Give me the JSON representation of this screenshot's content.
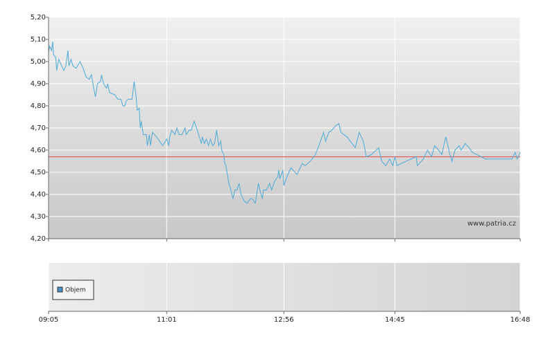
{
  "chart_data": {
    "type": "line",
    "x": [
      "09:05",
      "09:06",
      "09:08",
      "09:09",
      "09:10",
      "09:12",
      "09:13",
      "09:15",
      "09:17",
      "09:20",
      "09:22",
      "09:24",
      "09:25",
      "09:27",
      "09:29",
      "09:32",
      "09:36",
      "09:39",
      "09:42",
      "09:45",
      "09:47",
      "09:49",
      "09:51",
      "09:53",
      "09:56",
      "09:57",
      "09:59",
      "10:02",
      "10:03",
      "10:05",
      "10:10",
      "10:13",
      "10:16",
      "10:18",
      "10:20",
      "10:21",
      "10:23",
      "10:27",
      "10:29",
      "10:31",
      "10:32",
      "10:34",
      "10:35",
      "10:36",
      "10:38",
      "10:39",
      "10:41",
      "10:42",
      "10:44",
      "10:45",
      "10:47",
      "10:51",
      "10:54",
      "10:57",
      "11:01",
      "11:03",
      "11:04",
      "11:06",
      "11:09",
      "11:11",
      "11:13",
      "11:16",
      "11:19",
      "11:20",
      "11:23",
      "11:25",
      "11:28",
      "11:31",
      "11:35",
      "11:36",
      "11:38",
      "11:40",
      "11:42",
      "11:44",
      "11:46",
      "11:48",
      "11:50",
      "11:52",
      "11:54",
      "11:55",
      "11:57",
      "11:58",
      "11:59",
      "12:02",
      "12:04",
      "12:06",
      "12:08",
      "12:10",
      "12:12",
      "12:14",
      "12:17",
      "12:20",
      "12:23",
      "12:25",
      "12:28",
      "12:31",
      "12:33",
      "12:35",
      "12:36",
      "12:39",
      "12:42",
      "12:44",
      "12:47",
      "12:50",
      "12:51",
      "12:52",
      "12:55",
      "12:56",
      "12:59",
      "13:03",
      "13:09",
      "13:14",
      "13:17",
      "13:22",
      "13:27",
      "13:32",
      "13:35",
      "13:37",
      "13:40",
      "13:43",
      "13:47",
      "13:50",
      "13:52",
      "13:58",
      "14:03",
      "14:06",
      "14:10",
      "14:14",
      "14:17",
      "14:22",
      "14:29",
      "14:32",
      "14:36",
      "14:40",
      "14:43",
      "14:45",
      "14:47",
      "14:56",
      "15:06",
      "15:07",
      "15:13",
      "15:17",
      "15:21",
      "15:24",
      "15:28",
      "15:31",
      "15:35",
      "15:39",
      "15:41",
      "15:44",
      "15:48",
      "15:50",
      "15:54",
      "15:58",
      "16:01",
      "16:14",
      "16:28",
      "16:40",
      "16:43",
      "16:45",
      "16:48"
    ],
    "values": [
      5.04,
      5.07,
      5.05,
      5.09,
      5.03,
      5.02,
      4.96,
      5.01,
      4.99,
      4.96,
      4.98,
      5.05,
      4.98,
      5.01,
      4.98,
      4.97,
      5.0,
      4.97,
      4.93,
      4.92,
      4.94,
      4.89,
      4.84,
      4.9,
      4.91,
      4.94,
      4.9,
      4.88,
      4.9,
      4.86,
      4.85,
      4.83,
      4.83,
      4.8,
      4.8,
      4.82,
      4.83,
      4.83,
      4.91,
      4.84,
      4.78,
      4.79,
      4.7,
      4.73,
      4.67,
      4.67,
      4.67,
      4.62,
      4.67,
      4.62,
      4.68,
      4.66,
      4.64,
      4.62,
      4.65,
      4.62,
      4.66,
      4.69,
      4.67,
      4.7,
      4.67,
      4.67,
      4.7,
      4.67,
      4.69,
      4.69,
      4.73,
      4.69,
      4.63,
      4.66,
      4.63,
      4.65,
      4.62,
      4.65,
      4.62,
      4.63,
      4.69,
      4.62,
      4.64,
      4.6,
      4.58,
      4.54,
      4.53,
      4.45,
      4.42,
      4.38,
      4.42,
      4.42,
      4.45,
      4.4,
      4.37,
      4.36,
      4.38,
      4.38,
      4.36,
      4.45,
      4.41,
      4.38,
      4.42,
      4.42,
      4.45,
      4.42,
      4.46,
      4.48,
      4.51,
      4.47,
      4.51,
      4.44,
      4.48,
      4.52,
      4.49,
      4.54,
      4.53,
      4.55,
      4.58,
      4.64,
      4.68,
      4.64,
      4.68,
      4.69,
      4.71,
      4.72,
      4.68,
      4.66,
      4.63,
      4.61,
      4.68,
      4.64,
      4.57,
      4.58,
      4.61,
      4.55,
      4.53,
      4.56,
      4.53,
      4.57,
      4.53,
      4.55,
      4.57,
      4.53,
      4.56,
      4.6,
      4.57,
      4.62,
      4.6,
      4.58,
      4.66,
      4.58,
      4.55,
      4.6,
      4.62,
      4.6,
      4.63,
      4.61,
      4.59,
      4.56,
      4.56,
      4.56,
      4.59,
      4.56,
      4.59
    ],
    "color": "#5aaed6",
    "reference_line": {
      "value": 4.57,
      "color": "#e06060"
    },
    "xlim": [
      "09:05",
      "16:48"
    ],
    "xticks": [
      "09:05",
      "11:01",
      "12:56",
      "14:45",
      "16:48"
    ],
    "ylim": [
      4.2,
      5.2
    ],
    "yticks": [
      {
        "value": 4.2,
        "label": "4,20"
      },
      {
        "value": 4.3,
        "label": "4,30"
      },
      {
        "value": 4.4,
        "label": "4,40"
      },
      {
        "value": 4.5,
        "label": "4,50"
      },
      {
        "value": 4.6,
        "label": "4,60"
      },
      {
        "value": 4.7,
        "label": "4,70"
      },
      {
        "value": 4.8,
        "label": "4,80"
      },
      {
        "value": 4.9,
        "label": "4,90"
      },
      {
        "value": 5.0,
        "label": "5,00"
      },
      {
        "value": 5.1,
        "label": "5,10"
      },
      {
        "value": 5.2,
        "label": "5,20"
      }
    ],
    "grid": true,
    "watermark": "www.patria.cz",
    "volume_panel": {
      "legend": "Objem",
      "color": "#4a90c8"
    }
  }
}
